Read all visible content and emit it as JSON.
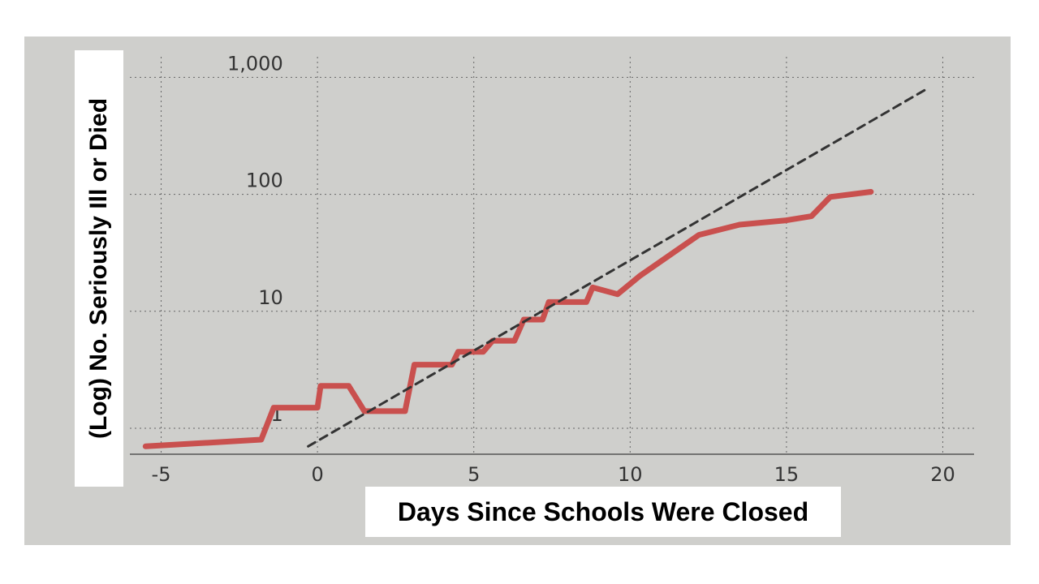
{
  "chart_data": {
    "type": "line",
    "x_label": "Days Since Schools Were Closed",
    "y_label": "(Log) No. Seriously Ill or Died",
    "log_y": true,
    "grid": true,
    "xlim": [
      -6,
      21
    ],
    "xticks": [
      -5,
      0,
      5,
      10,
      15,
      20
    ],
    "ylim": [
      0.6,
      1500
    ],
    "yticks": [
      1,
      10,
      100,
      {
        "value": 1000,
        "label": "1,000"
      }
    ],
    "series": [
      {
        "color": "#c9504e",
        "dashed": false,
        "x": [
          -5.5,
          -1.8,
          -1.4,
          0,
          0.1,
          1,
          1.5,
          2.8,
          3.1,
          4.3,
          4.5,
          5.3,
          5.6,
          6.3,
          6.6,
          7.2,
          7.4,
          8.6,
          8.8,
          9.6,
          10.3,
          12.2,
          13.5,
          15,
          15.8,
          16.4,
          17.7
        ],
        "values": [
          0.7,
          0.8,
          1.5,
          1.5,
          2.3,
          2.3,
          1.4,
          1.4,
          3.5,
          3.5,
          4.5,
          4.5,
          5.6,
          5.6,
          8.5,
          8.5,
          12,
          12,
          16,
          14,
          20,
          45,
          55,
          60,
          65,
          95,
          105
        ]
      },
      {
        "color": "#333333",
        "dashed": true,
        "x": [
          -0.3,
          19.5
        ],
        "values": [
          0.7,
          800
        ]
      }
    ]
  }
}
